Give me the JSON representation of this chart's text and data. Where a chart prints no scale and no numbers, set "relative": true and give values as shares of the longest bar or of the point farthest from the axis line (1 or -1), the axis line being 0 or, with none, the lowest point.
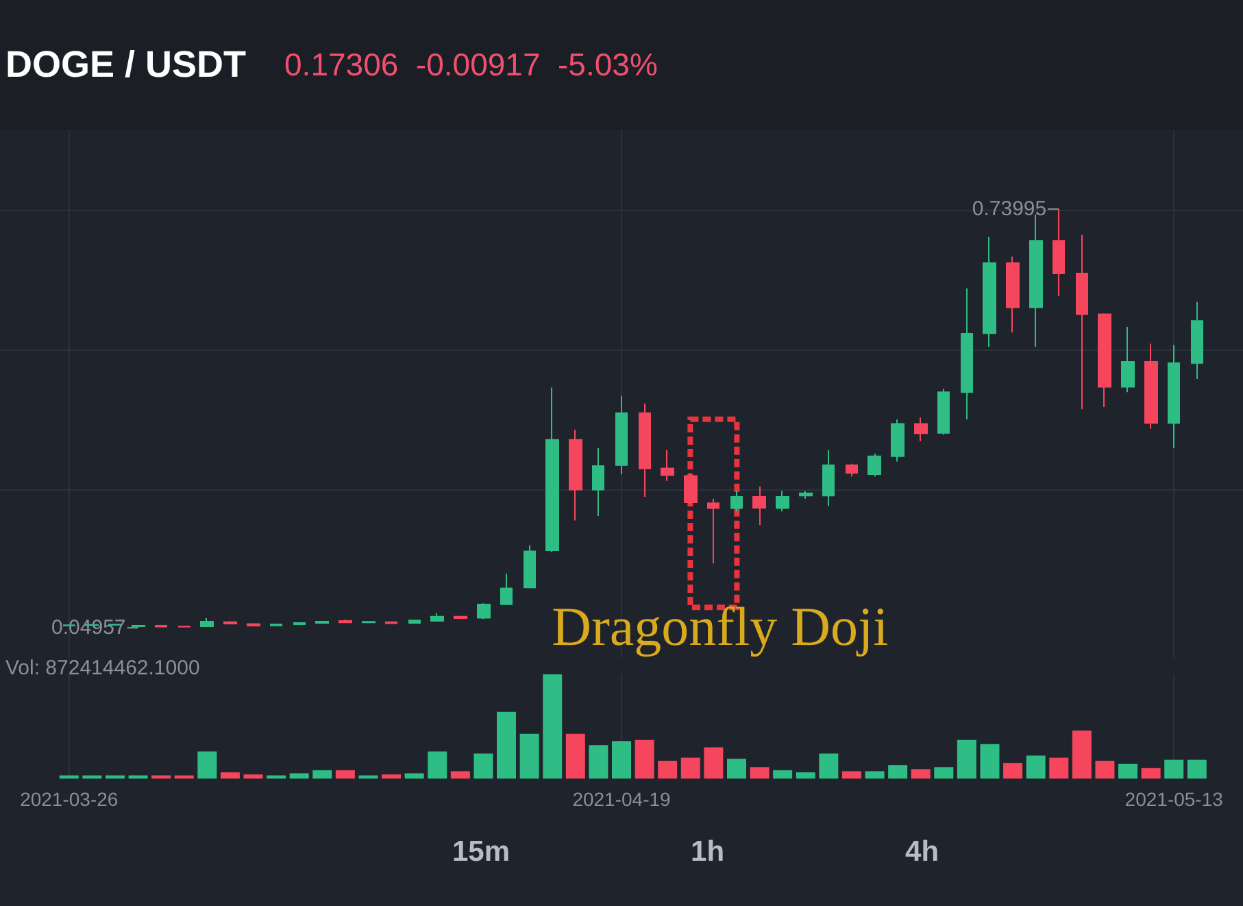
{
  "chart_data": [
    {
      "type": "candlestick",
      "title": "DOGE / USDT",
      "subtitle": "0.17306  -0.00917  -5.03%",
      "x": [
        "2021-03-26",
        "2021-03-27",
        "2021-03-28",
        "2021-03-29",
        "2021-03-30",
        "2021-03-31",
        "2021-04-01",
        "2021-04-02",
        "2021-04-03",
        "2021-04-04",
        "2021-04-05",
        "2021-04-06",
        "2021-04-07",
        "2021-04-08",
        "2021-04-09",
        "2021-04-10",
        "2021-04-11",
        "2021-04-12",
        "2021-04-13",
        "2021-04-14",
        "2021-04-15",
        "2021-04-16",
        "2021-04-17",
        "2021-04-18",
        "2021-04-19",
        "2021-04-20",
        "2021-04-21",
        "2021-04-22",
        "2021-04-23",
        "2021-04-24",
        "2021-04-25",
        "2021-04-26",
        "2021-04-27",
        "2021-04-28",
        "2021-04-29",
        "2021-04-30",
        "2021-05-01",
        "2021-05-02",
        "2021-05-03",
        "2021-05-04",
        "2021-05-05",
        "2021-05-06",
        "2021-05-07",
        "2021-05-08",
        "2021-05-09",
        "2021-05-10",
        "2021-05-11",
        "2021-05-12",
        "2021-05-13",
        "2021-05-14"
      ],
      "ohlc": [
        [
          0.0535,
          0.0545,
          0.0525,
          0.054
        ],
        [
          0.054,
          0.055,
          0.053,
          0.0545
        ],
        [
          0.0545,
          0.0555,
          0.053,
          0.055
        ],
        [
          0.052,
          0.054,
          0.04957,
          0.053
        ],
        [
          0.053,
          0.054,
          0.0505,
          0.0515
        ],
        [
          0.052,
          0.053,
          0.0505,
          0.0515
        ],
        [
          0.052,
          0.0655,
          0.051,
          0.06
        ],
        [
          0.059,
          0.061,
          0.0555,
          0.0565
        ],
        [
          0.056,
          0.057,
          0.052,
          0.053
        ],
        [
          0.0535,
          0.0565,
          0.0525,
          0.0555
        ],
        [
          0.0555,
          0.0585,
          0.0545,
          0.0575
        ],
        [
          0.0575,
          0.061,
          0.0565,
          0.06
        ],
        [
          0.061,
          0.063,
          0.0575,
          0.0585
        ],
        [
          0.0585,
          0.0605,
          0.057,
          0.0595
        ],
        [
          0.059,
          0.06,
          0.056,
          0.057
        ],
        [
          0.0575,
          0.063,
          0.0565,
          0.062
        ],
        [
          0.061,
          0.074,
          0.06,
          0.068
        ],
        [
          0.068,
          0.069,
          0.064,
          0.0655
        ],
        [
          0.066,
          0.09,
          0.064,
          0.088
        ],
        [
          0.0885,
          0.139,
          0.087,
          0.1146
        ],
        [
          0.1161,
          0.1856,
          0.1146,
          0.1758
        ],
        [
          0.1773,
          0.4457,
          0.1744,
          0.3596
        ],
        [
          0.3596,
          0.3762,
          0.2266,
          0.2775
        ],
        [
          0.2775,
          0.3461,
          0.234,
          0.3163
        ],
        [
          0.3179,
          0.4323,
          0.3029,
          0.4037
        ],
        [
          0.4037,
          0.4194,
          0.2654,
          0.3125
        ],
        [
          0.3125,
          0.3425,
          0.2917,
          0.3013
        ],
        [
          0.2999,
          0.3051,
          0.2535,
          0.2564
        ],
        [
          0.2551,
          0.2625,
          0.1556,
          0.2468
        ],
        [
          0.2468,
          0.2753,
          0.2416,
          0.2654
        ],
        [
          0.2654,
          0.2827,
          0.2192,
          0.2475
        ],
        [
          0.2468,
          0.2755,
          0.2416,
          0.2654
        ],
        [
          0.2676,
          0.2753,
          0.2625,
          0.2714
        ],
        [
          0.2676,
          0.3425,
          0.2506,
          0.3179
        ],
        [
          0.3179,
          0.32,
          0.299,
          0.305
        ],
        [
          0.3029,
          0.337,
          0.299,
          0.3326
        ],
        [
          0.3326,
          0.3932,
          0.3237,
          0.3858
        ],
        [
          0.3858,
          0.3963,
          0.3574,
          0.3702
        ],
        [
          0.3708,
          0.4435,
          0.368,
          0.438
        ],
        [
          0.438,
          0.6093,
          0.3932,
          0.5344
        ],
        [
          0.5353,
          0.6936,
          0.5129,
          0.651
        ],
        [
          0.651,
          0.6615,
          0.5367,
          0.5779
        ],
        [
          0.5779,
          0.731,
          0.5129,
          0.6877
        ],
        [
          0.6877,
          0.73995,
          0.5965,
          0.6339
        ],
        [
          0.6339,
          0.6974,
          0.4098,
          0.5667
        ],
        [
          0.5667,
          0.568,
          0.4134,
          0.447
        ],
        [
          0.447,
          0.5456,
          0.438,
          0.4882
        ],
        [
          0.4882,
          0.5181,
          0.3777,
          0.3874
        ],
        [
          0.3874,
          0.5158,
          0.3461,
          0.486
        ],
        [
          0.486,
          0.5869,
          0.4598,
          0.5555
        ]
      ],
      "colors": [
        "#2ebd85",
        "#2ebd85",
        "#2ebd85",
        "#2ebd85",
        "#f6465d",
        "#f6465d",
        "#2ebd85",
        "#f6465d",
        "#f6465d",
        "#2ebd85",
        "#2ebd85",
        "#2ebd85",
        "#f6465d",
        "#2ebd85",
        "#f6465d",
        "#2ebd85",
        "#2ebd85",
        "#f6465d",
        "#2ebd85",
        "#2ebd85",
        "#2ebd85",
        "#2ebd85",
        "#f6465d",
        "#2ebd85",
        "#2ebd85",
        "#f6465d",
        "#f6465d",
        "#f6465d",
        "#f6465d",
        "#2ebd85",
        "#f6465d",
        "#2ebd85",
        "#2ebd85",
        "#2ebd85",
        "#f6465d",
        "#2ebd85",
        "#2ebd85",
        "#f6465d",
        "#2ebd85",
        "#2ebd85",
        "#2ebd85",
        "#f6465d",
        "#2ebd85",
        "#f6465d",
        "#f6465d",
        "#f6465d",
        "#2ebd85",
        "#f6465d",
        "#2ebd85",
        "#2ebd85"
      ],
      "xlim": [
        "2021-03-23",
        "2021-05-16"
      ],
      "xticks": [
        "2021-03-26",
        "2021-04-19",
        "2021-05-13"
      ],
      "ylim": [
        0,
        0.87
      ],
      "yticks": [
        {
          "value": 0.278,
          "label": null
        },
        {
          "value": 0.507,
          "label": null
        },
        {
          "value": 0.738,
          "label": null
        }
      ],
      "tick_labels": false,
      "grid": true,
      "annotations": [
        {
          "text": "0.73995",
          "x": "2021-05-08",
          "y": 0.73995
        },
        {
          "text": "0.04957",
          "x": "2021-03-29",
          "y": 0.04957
        },
        {
          "text": "Dragonfly Doji",
          "x": "2021-04-23",
          "y": 0.1556
        }
      ]
    },
    {
      "type": "bar",
      "relative": true,
      "x": [
        "2021-03-26",
        "2021-03-27",
        "2021-03-28",
        "2021-03-29",
        "2021-03-30",
        "2021-03-31",
        "2021-04-01",
        "2021-04-02",
        "2021-04-03",
        "2021-04-04",
        "2021-04-05",
        "2021-04-06",
        "2021-04-07",
        "2021-04-08",
        "2021-04-09",
        "2021-04-10",
        "2021-04-11",
        "2021-04-12",
        "2021-04-13",
        "2021-04-14",
        "2021-04-15",
        "2021-04-16",
        "2021-04-17",
        "2021-04-18",
        "2021-04-19",
        "2021-04-20",
        "2021-04-21",
        "2021-04-22",
        "2021-04-23",
        "2021-04-24",
        "2021-04-25",
        "2021-04-26",
        "2021-04-27",
        "2021-04-28",
        "2021-04-29",
        "2021-04-30",
        "2021-05-01",
        "2021-05-02",
        "2021-05-03",
        "2021-05-04",
        "2021-05-05",
        "2021-05-06",
        "2021-05-07",
        "2021-05-08",
        "2021-05-09",
        "2021-05-10",
        "2021-05-11",
        "2021-05-12",
        "2021-05-13",
        "2021-05-14"
      ],
      "values": [
        0.03,
        0.03,
        0.03,
        0.03,
        0.03,
        0.03,
        0.26,
        0.06,
        0.04,
        0.03,
        0.05,
        0.08,
        0.08,
        0.03,
        0.04,
        0.05,
        0.26,
        0.07,
        0.24,
        0.64,
        0.43,
        1,
        0.43,
        0.32,
        0.36,
        0.37,
        0.17,
        0.2,
        0.3,
        0.19,
        0.11,
        0.08,
        0.06,
        0.24,
        0.07,
        0.07,
        0.13,
        0.09,
        0.11,
        0.37,
        0.33,
        0.15,
        0.22,
        0.2,
        0.46,
        0.17,
        0.14,
        0.1,
        0.18,
        0.18
      ],
      "colors": [
        "#2ebd85",
        "#2ebd85",
        "#2ebd85",
        "#2ebd85",
        "#f6465d",
        "#f6465d",
        "#2ebd85",
        "#f6465d",
        "#f6465d",
        "#2ebd85",
        "#2ebd85",
        "#2ebd85",
        "#f6465d",
        "#2ebd85",
        "#f6465d",
        "#2ebd85",
        "#2ebd85",
        "#f6465d",
        "#2ebd85",
        "#2ebd85",
        "#2ebd85",
        "#2ebd85",
        "#f6465d",
        "#2ebd85",
        "#2ebd85",
        "#f6465d",
        "#f6465d",
        "#f6465d",
        "#f6465d",
        "#2ebd85",
        "#f6465d",
        "#2ebd85",
        "#2ebd85",
        "#2ebd85",
        "#f6465d",
        "#2ebd85",
        "#2ebd85",
        "#f6465d",
        "#2ebd85",
        "#2ebd85",
        "#2ebd85",
        "#f6465d",
        "#2ebd85",
        "#f6465d",
        "#f6465d",
        "#f6465d",
        "#2ebd85",
        "#f6465d",
        "#2ebd85",
        "#2ebd85"
      ],
      "xlim": [
        "2021-03-23",
        "2021-05-16"
      ],
      "xticks": [
        "2021-03-26",
        "2021-04-19",
        "2021-05-13"
      ],
      "grid": "x",
      "annotations": [
        "Vol: 872414462.1000",
        "15m",
        "1h",
        "4h"
      ]
    }
  ]
}
